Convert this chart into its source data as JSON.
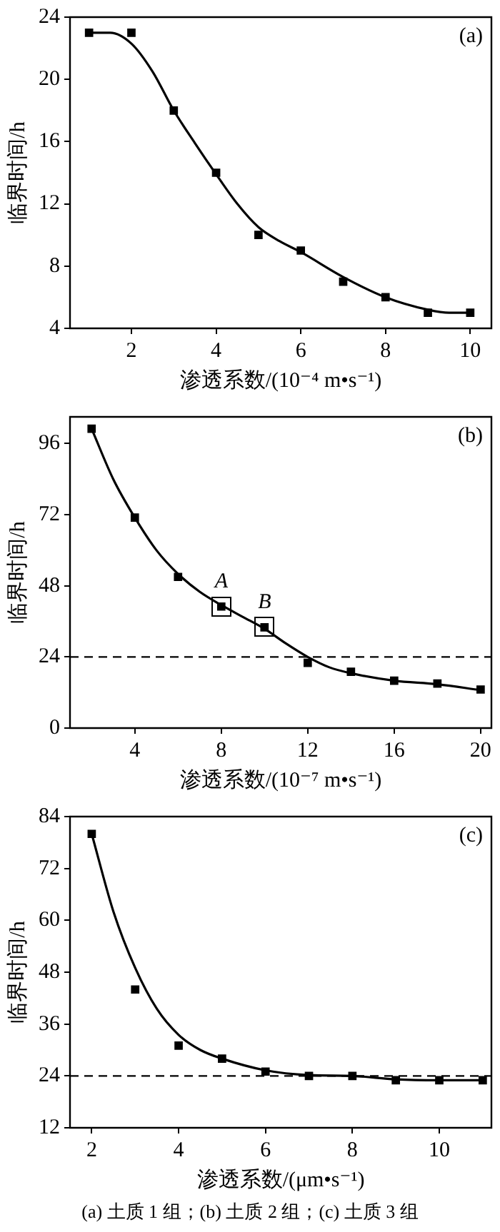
{
  "chart_data": [
    {
      "type": "scatter",
      "xlabel": "渗透系数/(10⁻⁴ m•s⁻¹)",
      "ylabel": "临界时间/h",
      "annotations": [
        "(a)"
      ],
      "xlim": [
        0.55,
        10.5
      ],
      "xticks": [
        2,
        4,
        6,
        8,
        10
      ],
      "ylim": [
        4,
        24
      ],
      "yticks": [
        4,
        8,
        12,
        16,
        20,
        24
      ],
      "grid": false,
      "legend": false,
      "marker": "square",
      "series": [
        {
          "type": "scatter",
          "color": "#000000",
          "x": [
            1,
            2,
            3,
            4,
            5,
            6,
            7,
            8,
            9,
            10
          ],
          "values": [
            23,
            23,
            18,
            14,
            10,
            9,
            7,
            6,
            5,
            5
          ]
        },
        {
          "type": "line",
          "color": "#000000",
          "marker": "none",
          "line_style": "solid",
          "x": [
            1,
            1.5,
            2,
            2.5,
            3,
            3.5,
            4,
            4.5,
            5,
            5.5,
            6,
            7,
            8,
            9,
            9.5,
            10
          ],
          "values": [
            23,
            23,
            22.3,
            20.5,
            18,
            15.9,
            13.9,
            12,
            10.5,
            9.6,
            8.9,
            7.3,
            6,
            5.2,
            5,
            5
          ]
        }
      ]
    },
    {
      "type": "scatter",
      "xlabel": "渗透系数/(10⁻⁷ m•s⁻¹)",
      "ylabel": "临界时间/h",
      "annotations": [
        "(b)",
        {
          "text": "A",
          "x": 8,
          "y": 41
        },
        {
          "text": "B",
          "x": 10,
          "y": 34
        }
      ],
      "xlim": [
        1,
        20.5
      ],
      "xticks": [
        4,
        8,
        12,
        16,
        20
      ],
      "ylim": [
        0,
        105
      ],
      "yticks": [
        0,
        24,
        48,
        72,
        96
      ],
      "grid": false,
      "legend": false,
      "marker": "square",
      "ref_lines": [
        {
          "axis": "y",
          "value": 24,
          "line_style": "dashed",
          "color": "#000000"
        }
      ],
      "series": [
        {
          "type": "scatter",
          "color": "#000000",
          "x": [
            2,
            4,
            6,
            8,
            10,
            12,
            14,
            16,
            18,
            20
          ],
          "values": [
            101,
            71,
            51,
            41,
            34,
            22,
            19,
            16,
            15,
            13
          ]
        },
        {
          "type": "line",
          "color": "#000000",
          "marker": "none",
          "line_style": "solid",
          "x": [
            2,
            3,
            4,
            5,
            6,
            7,
            8,
            9,
            10,
            11,
            12,
            13,
            14,
            16,
            18,
            20
          ],
          "values": [
            101,
            84,
            71,
            60,
            52,
            46,
            41.5,
            37.5,
            33.5,
            28.5,
            24,
            20.5,
            18.5,
            16,
            14.8,
            12.8
          ]
        }
      ]
    },
    {
      "type": "scatter",
      "xlabel": "渗透系数/(μm•s⁻¹)",
      "ylabel": "临界时间/h",
      "annotations": [
        "(c)",
        "(a) 土质 1 组；(b) 土质 2 组；(c) 土质 3 组"
      ],
      "xlim": [
        1.5,
        11.2
      ],
      "xticks": [
        2,
        4,
        6,
        8,
        10
      ],
      "ylim": [
        12,
        84
      ],
      "yticks": [
        12,
        24,
        36,
        48,
        60,
        72,
        84
      ],
      "grid": false,
      "legend": false,
      "marker": "square",
      "ref_lines": [
        {
          "axis": "y",
          "value": 24,
          "line_style": "dashed",
          "color": "#000000"
        }
      ],
      "series": [
        {
          "type": "scatter",
          "color": "#000000",
          "x": [
            2,
            3,
            4,
            5,
            6,
            7,
            8,
            9,
            10,
            11
          ],
          "values": [
            80,
            44,
            31,
            28,
            25,
            24,
            24,
            23,
            23,
            23
          ]
        },
        {
          "type": "line",
          "color": "#000000",
          "marker": "none",
          "line_style": "solid",
          "x": [
            2,
            2.5,
            3,
            3.5,
            4,
            4.5,
            5,
            6,
            7,
            8,
            9,
            10,
            11
          ],
          "values": [
            80,
            62,
            49,
            39.5,
            33.5,
            30,
            28,
            25.3,
            24.2,
            24,
            23.2,
            23,
            23
          ]
        }
      ]
    }
  ]
}
